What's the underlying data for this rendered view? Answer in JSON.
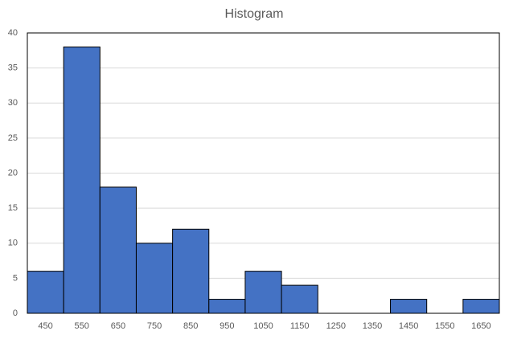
{
  "chart_data": {
    "type": "bar",
    "title": "Histogram",
    "categories": [
      "450",
      "550",
      "650",
      "750",
      "850",
      "950",
      "1050",
      "1150",
      "1250",
      "1350",
      "1450",
      "1550",
      "1650"
    ],
    "values": [
      6,
      38,
      18,
      10,
      12,
      2,
      6,
      4,
      0,
      0,
      2,
      0,
      2
    ],
    "color": "#4472c4",
    "ylim": [
      0,
      40
    ],
    "yticks": [
      0,
      5,
      10,
      15,
      20,
      25,
      30,
      35,
      40
    ],
    "grid": true
  }
}
